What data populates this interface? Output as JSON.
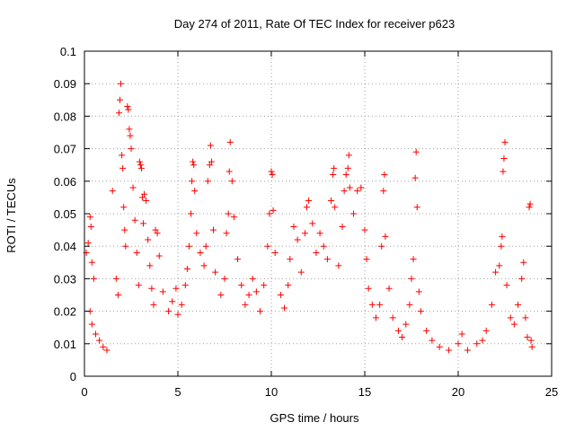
{
  "chart_data": {
    "type": "scatter",
    "title": "Day 274 of 2011, Rate Of TEC Index for receiver p623",
    "xlabel": "GPS time / hours",
    "ylabel": "ROTI / TECUs",
    "xlim": [
      0,
      25
    ],
    "ylim": [
      0,
      0.1
    ],
    "xticks": [
      0,
      5,
      10,
      15,
      20,
      25
    ],
    "yticks": [
      0,
      0.01,
      0.02,
      0.03,
      0.04,
      0.05,
      0.06,
      0.07,
      0.08,
      0.09,
      0.1
    ],
    "xtick_labels": [
      "0",
      "5",
      "10",
      "15",
      "20",
      "25"
    ],
    "ytick_labels": [
      "0",
      "0.01",
      "0.02",
      "0.03",
      "0.04",
      "0.05",
      "0.06",
      "0.07",
      "0.08",
      "0.09",
      "0.1"
    ],
    "grid": true,
    "marker": "plus",
    "color": "#ff0000",
    "points": [
      [
        0.1,
        0.038
      ],
      [
        0.2,
        0.041
      ],
      [
        0.3,
        0.049
      ],
      [
        0.35,
        0.046
      ],
      [
        0.4,
        0.035
      ],
      [
        0.5,
        0.03
      ],
      [
        0.3,
        0.02
      ],
      [
        0.4,
        0.016
      ],
      [
        0.6,
        0.013
      ],
      [
        0.8,
        0.011
      ],
      [
        1.0,
        0.009
      ],
      [
        1.2,
        0.008
      ],
      [
        1.5,
        0.057
      ],
      [
        1.7,
        0.03
      ],
      [
        1.8,
        0.025
      ],
      [
        1.85,
        0.081
      ],
      [
        1.9,
        0.085
      ],
      [
        1.95,
        0.09
      ],
      [
        2.0,
        0.068
      ],
      [
        2.05,
        0.064
      ],
      [
        2.1,
        0.052
      ],
      [
        2.15,
        0.045
      ],
      [
        2.2,
        0.04
      ],
      [
        2.3,
        0.083
      ],
      [
        2.35,
        0.082
      ],
      [
        2.4,
        0.076
      ],
      [
        2.45,
        0.074
      ],
      [
        2.5,
        0.07
      ],
      [
        2.6,
        0.058
      ],
      [
        2.7,
        0.048
      ],
      [
        2.8,
        0.038
      ],
      [
        2.9,
        0.028
      ],
      [
        2.95,
        0.066
      ],
      [
        3.0,
        0.065
      ],
      [
        3.05,
        0.064
      ],
      [
        3.1,
        0.055
      ],
      [
        3.15,
        0.047
      ],
      [
        3.2,
        0.056
      ],
      [
        3.3,
        0.054
      ],
      [
        3.4,
        0.042
      ],
      [
        3.5,
        0.034
      ],
      [
        3.6,
        0.027
      ],
      [
        3.7,
        0.022
      ],
      [
        3.8,
        0.045
      ],
      [
        3.9,
        0.044
      ],
      [
        4.0,
        0.037
      ],
      [
        4.2,
        0.026
      ],
      [
        4.5,
        0.02
      ],
      [
        4.7,
        0.023
      ],
      [
        4.9,
        0.027
      ],
      [
        5.0,
        0.019
      ],
      [
        5.2,
        0.022
      ],
      [
        5.4,
        0.028
      ],
      [
        5.5,
        0.033
      ],
      [
        5.6,
        0.04
      ],
      [
        5.7,
        0.05
      ],
      [
        5.75,
        0.06
      ],
      [
        5.8,
        0.066
      ],
      [
        5.85,
        0.065
      ],
      [
        5.9,
        0.057
      ],
      [
        6.0,
        0.044
      ],
      [
        6.2,
        0.038
      ],
      [
        6.4,
        0.034
      ],
      [
        6.5,
        0.04
      ],
      [
        6.6,
        0.06
      ],
      [
        6.7,
        0.065
      ],
      [
        6.75,
        0.071
      ],
      [
        6.8,
        0.066
      ],
      [
        6.9,
        0.045
      ],
      [
        7.0,
        0.032
      ],
      [
        7.3,
        0.025
      ],
      [
        7.5,
        0.03
      ],
      [
        7.6,
        0.044
      ],
      [
        7.7,
        0.05
      ],
      [
        7.75,
        0.063
      ],
      [
        7.8,
        0.072
      ],
      [
        7.9,
        0.06
      ],
      [
        8.0,
        0.049
      ],
      [
        8.2,
        0.036
      ],
      [
        8.4,
        0.028
      ],
      [
        8.6,
        0.022
      ],
      [
        8.8,
        0.025
      ],
      [
        9.0,
        0.03
      ],
      [
        9.2,
        0.026
      ],
      [
        9.4,
        0.02
      ],
      [
        9.6,
        0.028
      ],
      [
        9.8,
        0.04
      ],
      [
        9.9,
        0.05
      ],
      [
        10.0,
        0.063
      ],
      [
        10.05,
        0.062
      ],
      [
        10.1,
        0.051
      ],
      [
        10.2,
        0.038
      ],
      [
        10.5,
        0.025
      ],
      [
        10.7,
        0.021
      ],
      [
        10.9,
        0.028
      ],
      [
        11.0,
        0.036
      ],
      [
        11.2,
        0.046
      ],
      [
        11.4,
        0.042
      ],
      [
        11.6,
        0.032
      ],
      [
        11.8,
        0.044
      ],
      [
        11.9,
        0.052
      ],
      [
        12.0,
        0.054
      ],
      [
        12.2,
        0.047
      ],
      [
        12.4,
        0.038
      ],
      [
        12.6,
        0.044
      ],
      [
        12.8,
        0.04
      ],
      [
        13.0,
        0.036
      ],
      [
        13.2,
        0.054
      ],
      [
        13.3,
        0.062
      ],
      [
        13.35,
        0.064
      ],
      [
        13.4,
        0.052
      ],
      [
        13.6,
        0.034
      ],
      [
        13.8,
        0.046
      ],
      [
        13.9,
        0.057
      ],
      [
        14.0,
        0.062
      ],
      [
        14.1,
        0.064
      ],
      [
        14.15,
        0.068
      ],
      [
        14.2,
        0.058
      ],
      [
        14.4,
        0.05
      ],
      [
        14.6,
        0.057
      ],
      [
        14.8,
        0.058
      ],
      [
        15.0,
        0.045
      ],
      [
        15.1,
        0.036
      ],
      [
        15.2,
        0.027
      ],
      [
        15.4,
        0.022
      ],
      [
        15.6,
        0.018
      ],
      [
        15.8,
        0.022
      ],
      [
        15.9,
        0.04
      ],
      [
        16.0,
        0.057
      ],
      [
        16.05,
        0.062
      ],
      [
        16.1,
        0.043
      ],
      [
        16.3,
        0.027
      ],
      [
        16.5,
        0.018
      ],
      [
        16.8,
        0.014
      ],
      [
        17.0,
        0.012
      ],
      [
        17.2,
        0.016
      ],
      [
        17.4,
        0.022
      ],
      [
        17.5,
        0.03
      ],
      [
        17.6,
        0.036
      ],
      [
        17.7,
        0.061
      ],
      [
        17.75,
        0.069
      ],
      [
        17.8,
        0.052
      ],
      [
        17.9,
        0.026
      ],
      [
        18.0,
        0.02
      ],
      [
        18.3,
        0.014
      ],
      [
        18.6,
        0.011
      ],
      [
        19.0,
        0.009
      ],
      [
        19.5,
        0.008
      ],
      [
        20.0,
        0.01
      ],
      [
        20.2,
        0.013
      ],
      [
        20.5,
        0.008
      ],
      [
        21.0,
        0.01
      ],
      [
        21.3,
        0.011
      ],
      [
        21.5,
        0.014
      ],
      [
        21.8,
        0.022
      ],
      [
        22.0,
        0.032
      ],
      [
        22.2,
        0.034
      ],
      [
        22.3,
        0.04
      ],
      [
        22.35,
        0.043
      ],
      [
        22.4,
        0.063
      ],
      [
        22.45,
        0.067
      ],
      [
        22.5,
        0.072
      ],
      [
        22.6,
        0.028
      ],
      [
        22.8,
        0.018
      ],
      [
        23.0,
        0.016
      ],
      [
        23.2,
        0.022
      ],
      [
        23.4,
        0.03
      ],
      [
        23.5,
        0.035
      ],
      [
        23.6,
        0.018
      ],
      [
        23.7,
        0.012
      ],
      [
        23.8,
        0.052
      ],
      [
        23.85,
        0.053
      ],
      [
        23.9,
        0.011
      ],
      [
        23.95,
        0.009
      ]
    ]
  }
}
